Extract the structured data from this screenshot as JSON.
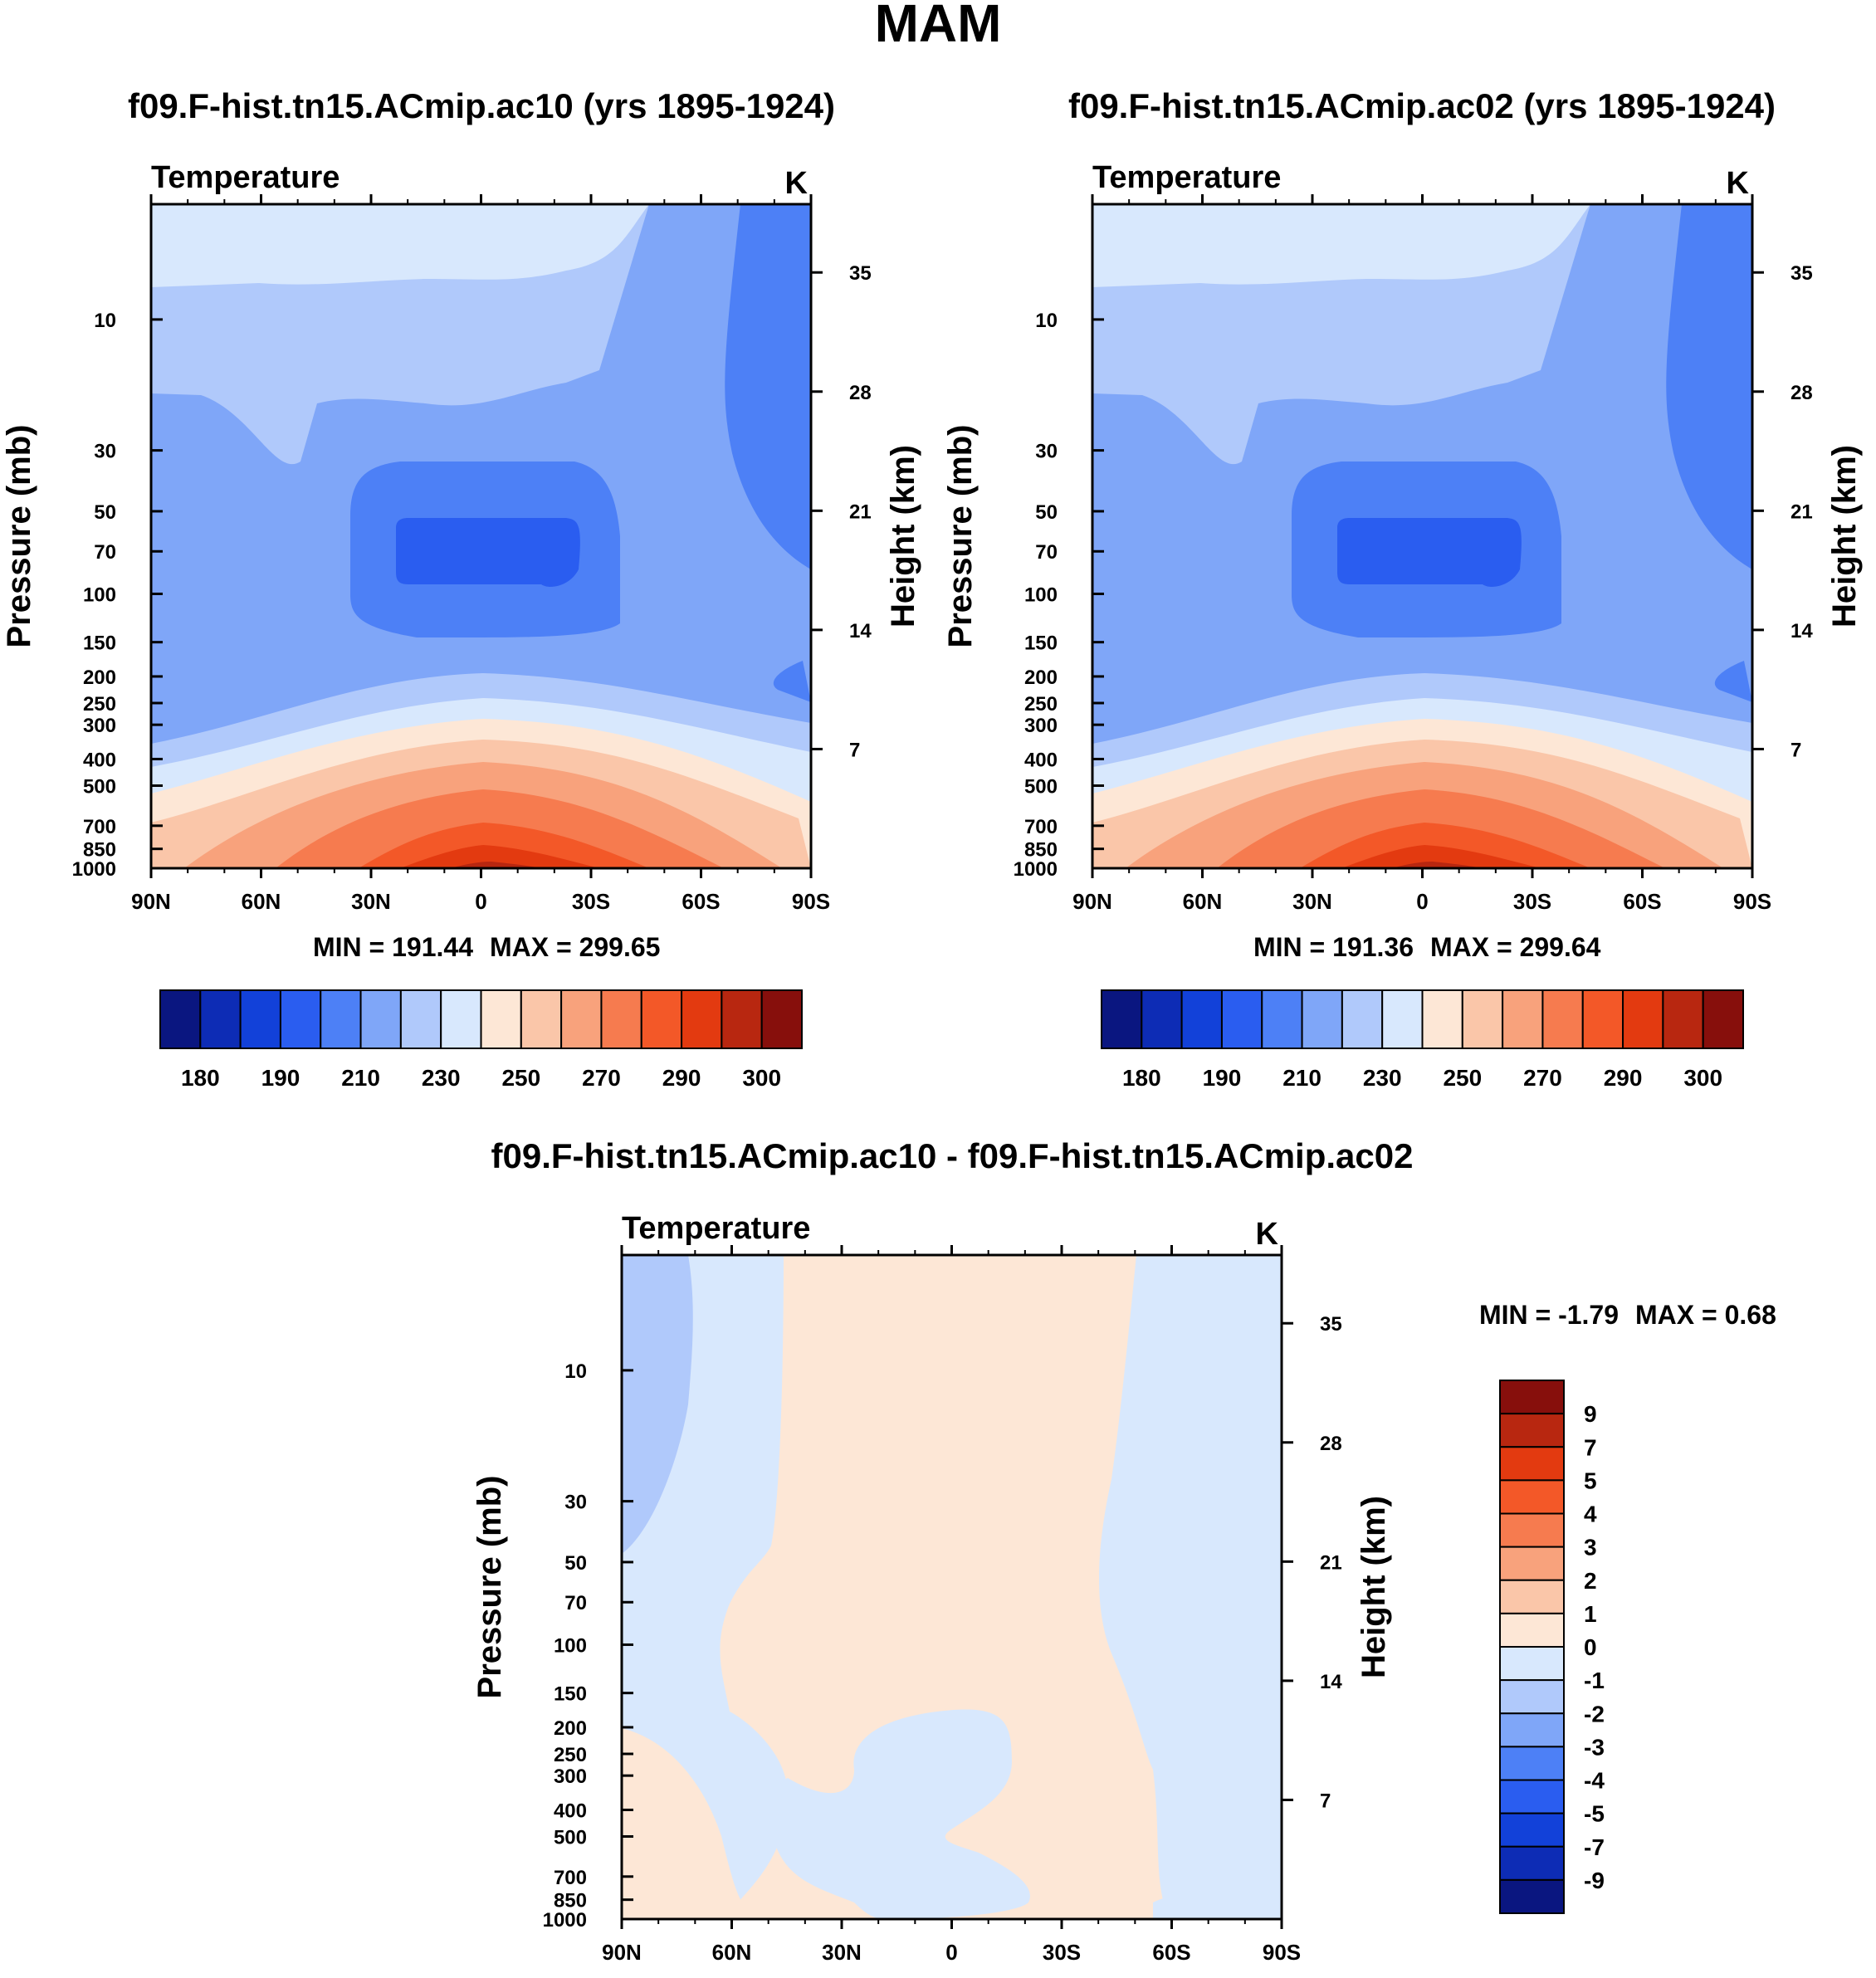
{
  "figure": {
    "title": "MAM"
  },
  "chart_data": [
    {
      "type": "contour",
      "id": "panel_ac10",
      "title": "f09.F-hist.tn15.ACmip.ac10 (yrs 1895-1924)",
      "field": "Temperature",
      "units": "K",
      "ylabel": "Pressure (mb)",
      "y2label": "Height (km)",
      "xticks": [
        "90N",
        "60N",
        "30N",
        "0",
        "30S",
        "60S",
        "90S"
      ],
      "pressure_levels": [
        10,
        30,
        50,
        70,
        100,
        150,
        200,
        250,
        300,
        400,
        500,
        700,
        850,
        1000
      ],
      "height_ticks_km": [
        35,
        28,
        21,
        14,
        7
      ],
      "min_text": "MIN = 191.44",
      "max_text": "MAX = 299.65",
      "min": 191.44,
      "max": 299.65,
      "colorbar_labels": [
        "180",
        "190",
        "210",
        "230",
        "250",
        "270",
        "290",
        "300"
      ],
      "colorbar_colors": [
        "#0a1680",
        "#0d2cb5",
        "#1241d9",
        "#2a5df0",
        "#4d80f6",
        "#7fa6f8",
        "#b0c9fb",
        "#d8e8fd",
        "#fde7d6",
        "#fac6a9",
        "#f8a27c",
        "#f67b4f",
        "#f35828",
        "#e33a10",
        "#b82710",
        "#870f0c"
      ]
    },
    {
      "type": "contour",
      "id": "panel_ac02",
      "title": "f09.F-hist.tn15.ACmip.ac02 (yrs 1895-1924)",
      "field": "Temperature",
      "units": "K",
      "ylabel": "Pressure (mb)",
      "y2label": "Height (km)",
      "xticks": [
        "90N",
        "60N",
        "30N",
        "0",
        "30S",
        "60S",
        "90S"
      ],
      "pressure_levels": [
        10,
        30,
        50,
        70,
        100,
        150,
        200,
        250,
        300,
        400,
        500,
        700,
        850,
        1000
      ],
      "height_ticks_km": [
        35,
        28,
        21,
        14,
        7
      ],
      "min_text": "MIN = 191.36",
      "max_text": "MAX = 299.64",
      "min": 191.36,
      "max": 299.64,
      "colorbar_labels": [
        "180",
        "190",
        "210",
        "230",
        "250",
        "270",
        "290",
        "300"
      ],
      "colorbar_colors": [
        "#0a1680",
        "#0d2cb5",
        "#1241d9",
        "#2a5df0",
        "#4d80f6",
        "#7fa6f8",
        "#b0c9fb",
        "#d8e8fd",
        "#fde7d6",
        "#fac6a9",
        "#f8a27c",
        "#f67b4f",
        "#f35828",
        "#e33a10",
        "#b82710",
        "#870f0c"
      ]
    },
    {
      "type": "contour",
      "id": "panel_diff",
      "title": "f09.F-hist.tn15.ACmip.ac10 - f09.F-hist.tn15.ACmip.ac02",
      "field": "Temperature",
      "units": "K",
      "ylabel": "Pressure (mb)",
      "y2label": "Height (km)",
      "xticks": [
        "90N",
        "60N",
        "30N",
        "0",
        "30S",
        "60S",
        "90S"
      ],
      "pressure_levels": [
        10,
        30,
        50,
        70,
        100,
        150,
        200,
        250,
        300,
        400,
        500,
        700,
        850,
        1000
      ],
      "height_ticks_km": [
        35,
        28,
        21,
        14,
        7
      ],
      "min_text": "MIN =  -1.79",
      "max_text": "MAX =   0.68",
      "min": -1.79,
      "max": 0.68,
      "colorbar_labels": [
        "9",
        "7",
        "5",
        "4",
        "3",
        "2",
        "1",
        "0",
        "-1",
        "-2",
        "-3",
        "-4",
        "-5",
        "-7",
        "-9"
      ],
      "colorbar_colors": [
        "#870f0c",
        "#b82710",
        "#e33a10",
        "#f35828",
        "#f67b4f",
        "#f8a27c",
        "#fac6a9",
        "#fde7d6",
        "#d8e8fd",
        "#b0c9fb",
        "#7fa6f8",
        "#4d80f6",
        "#2a5df0",
        "#1241d9",
        "#0d2cb5",
        "#0a1680"
      ]
    }
  ]
}
